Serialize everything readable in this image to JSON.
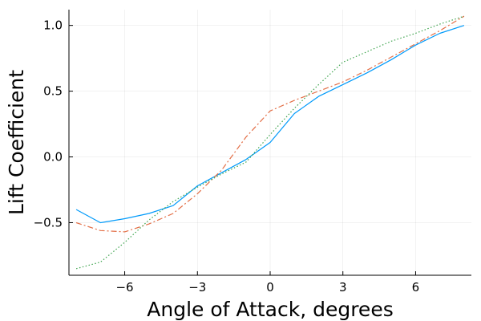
{
  "chart_data": {
    "type": "line",
    "title": "",
    "xlabel": "Angle of Attack, degrees",
    "ylabel": "Lift Coefficient",
    "xlim": [
      -8.3,
      8.3
    ],
    "ylim": [
      -0.9,
      1.12
    ],
    "x_ticks": [
      {
        "value": -6,
        "label": "−6"
      },
      {
        "value": -3,
        "label": "−3"
      },
      {
        "value": 0,
        "label": "0"
      },
      {
        "value": 3,
        "label": "3"
      },
      {
        "value": 6,
        "label": "6"
      }
    ],
    "y_ticks": [
      {
        "value": -0.5,
        "label": "−0.5"
      },
      {
        "value": 0.0,
        "label": "0.0"
      },
      {
        "value": 0.5,
        "label": "0.5"
      },
      {
        "value": 1.0,
        "label": "1.0"
      }
    ],
    "grid": true,
    "legend": "none",
    "series": [
      {
        "color": "#009AFA",
        "style": "solid",
        "points": [
          [
            -8,
            -0.4
          ],
          [
            -7,
            -0.5
          ],
          [
            -6,
            -0.47
          ],
          [
            -5,
            -0.43
          ],
          [
            -4,
            -0.37
          ],
          [
            -3,
            -0.22
          ],
          [
            -2,
            -0.12
          ],
          [
            -1,
            -0.02
          ],
          [
            0,
            0.11
          ],
          [
            1,
            0.33
          ],
          [
            2,
            0.46
          ],
          [
            3,
            0.55
          ],
          [
            4,
            0.64
          ],
          [
            5,
            0.74
          ],
          [
            6,
            0.85
          ],
          [
            7,
            0.94
          ],
          [
            8,
            1.0
          ]
        ]
      },
      {
        "color": "#E36F47",
        "style": "dashdot",
        "points": [
          [
            -8,
            -0.5
          ],
          [
            -7,
            -0.56
          ],
          [
            -6,
            -0.57
          ],
          [
            -5,
            -0.51
          ],
          [
            -4,
            -0.43
          ],
          [
            -3,
            -0.28
          ],
          [
            -2,
            -0.1
          ],
          [
            -1,
            0.15
          ],
          [
            0,
            0.35
          ],
          [
            1,
            0.43
          ],
          [
            2,
            0.5
          ],
          [
            3,
            0.57
          ],
          [
            4,
            0.66
          ],
          [
            5,
            0.76
          ],
          [
            6,
            0.86
          ],
          [
            7,
            0.96
          ],
          [
            8,
            1.07
          ]
        ]
      },
      {
        "color": "#3EA44E",
        "style": "dotted",
        "points": [
          [
            -8,
            -0.85
          ],
          [
            -7,
            -0.8
          ],
          [
            -6,
            -0.65
          ],
          [
            -5,
            -0.48
          ],
          [
            -4,
            -0.34
          ],
          [
            -3,
            -0.23
          ],
          [
            -2,
            -0.13
          ],
          [
            -1,
            -0.04
          ],
          [
            0,
            0.17
          ],
          [
            1,
            0.37
          ],
          [
            2,
            0.55
          ],
          [
            3,
            0.72
          ],
          [
            4,
            0.8
          ],
          [
            5,
            0.88
          ],
          [
            6,
            0.94
          ],
          [
            7,
            1.01
          ],
          [
            8,
            1.07
          ]
        ]
      }
    ]
  }
}
